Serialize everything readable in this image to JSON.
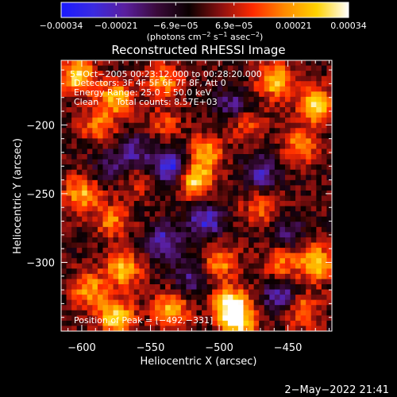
{
  "chart_data": {
    "type": "heatmap",
    "title": "Reconstructed RHESSI Image",
    "xlabel": "Heliocentric X (arcsec)",
    "ylabel": "Heliocentric Y (arcsec)",
    "xlim": [
      -615,
      -418
    ],
    "ylim": [
      -350,
      -153
    ],
    "x_ticks": [
      -600,
      -550,
      -500,
      -450
    ],
    "x_tick_labels": [
      "−600",
      "−550",
      "−500",
      "−450"
    ],
    "y_ticks": [
      -200,
      -250,
      -300
    ],
    "y_tick_labels": [
      "−200",
      "−250",
      "−300"
    ],
    "colorbar": {
      "range": [
        -0.00034,
        0.00034
      ],
      "ticks": [
        -0.00034,
        -0.00021,
        -6.9e-05,
        6.9e-05,
        0.00021,
        0.00034
      ],
      "tick_labels": [
        "−0.00034",
        "−0.00021",
        "−6.9e−05",
        "6.9e−05",
        "0.00021",
        "0.00034"
      ],
      "units_text": "(photons cm",
      "units_exp1": "−2",
      "units_mid": " s",
      "units_exp2": "−1",
      "units_end": " asec",
      "units_exp3": "−2",
      "units_close": ")"
    },
    "annotations": {
      "time_range": "5−Oct−2005 00:23:12.000 to 00:28:20.000",
      "detectors": "Detectors: 3F 4F 5F 6F 7F 8F, Att 0",
      "energy": "Energy Range: 25.0 − 50.0 keV",
      "clean": "Clean",
      "total_counts": "Total counts: 8.57E+03",
      "peak": "Position of Peak = [−492,−331]"
    },
    "peak_position": [
      -492,
      -331
    ],
    "footer_date": "2−May−2022 21:41",
    "colormap_stops": [
      "#1a1aff",
      "#3a2ae0",
      "#5a1f9e",
      "#3a0a3a",
      "#0a0000",
      "#8a1010",
      "#ff2a00",
      "#ff8a00",
      "#ffd200",
      "#ffffff"
    ],
    "hotspots": [
      {
        "x": -603,
        "y": -165,
        "v": 0.0003
      },
      {
        "x": -575,
        "y": -180,
        "v": 0.00024
      },
      {
        "x": -588,
        "y": -200,
        "v": 0.00018
      },
      {
        "x": -540,
        "y": -168,
        "v": 0.0002
      },
      {
        "x": -460,
        "y": -168,
        "v": 0.00026
      },
      {
        "x": -430,
        "y": -185,
        "v": 0.0003
      },
      {
        "x": -440,
        "y": -215,
        "v": 0.0002
      },
      {
        "x": -518,
        "y": -240,
        "v": 0.0003
      },
      {
        "x": -510,
        "y": -220,
        "v": 0.00022
      },
      {
        "x": -600,
        "y": -250,
        "v": 0.00024
      },
      {
        "x": -578,
        "y": -270,
        "v": 0.00018
      },
      {
        "x": -470,
        "y": -260,
        "v": 0.00016
      },
      {
        "x": -430,
        "y": -300,
        "v": 0.00028
      },
      {
        "x": -455,
        "y": -300,
        "v": 0.00018
      },
      {
        "x": -570,
        "y": -305,
        "v": 0.00026
      },
      {
        "x": -595,
        "y": -320,
        "v": 0.00022
      },
      {
        "x": -575,
        "y": -340,
        "v": 0.0003
      },
      {
        "x": -535,
        "y": -335,
        "v": 0.00024
      },
      {
        "x": -492,
        "y": -331,
        "v": 0.00034
      },
      {
        "x": -500,
        "y": -300,
        "v": 0.0002
      },
      {
        "x": -485,
        "y": -345,
        "v": 0.00026
      },
      {
        "x": -440,
        "y": -335,
        "v": 0.0002
      },
      {
        "x": -540,
        "y": -200,
        "v": 0.00012
      },
      {
        "x": -480,
        "y": -200,
        "v": 0.00014
      },
      {
        "x": -560,
        "y": -240,
        "v": 0.0001
      }
    ],
    "coldspots": [
      {
        "x": -535,
        "y": -230,
        "v": -0.0003
      },
      {
        "x": -560,
        "y": -220,
        "v": -0.00018
      },
      {
        "x": -510,
        "y": -270,
        "v": -0.00024
      },
      {
        "x": -540,
        "y": -285,
        "v": -0.00022
      },
      {
        "x": -470,
        "y": -235,
        "v": -0.0002
      },
      {
        "x": -490,
        "y": -185,
        "v": -0.00016
      },
      {
        "x": -455,
        "y": -325,
        "v": -0.00022
      },
      {
        "x": -520,
        "y": -310,
        "v": -0.00016
      },
      {
        "x": -580,
        "y": -230,
        "v": -0.00012
      },
      {
        "x": -450,
        "y": -280,
        "v": -0.00014
      }
    ]
  }
}
